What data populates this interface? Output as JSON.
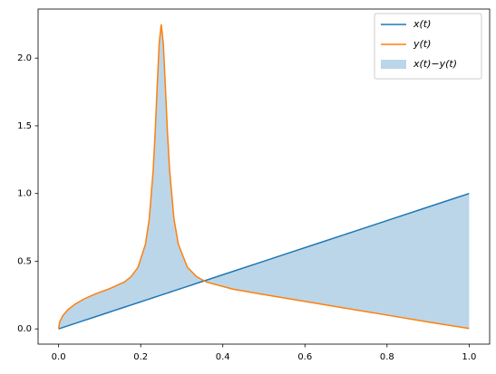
{
  "chart_data": {
    "type": "line",
    "x": [
      0,
      0.0025,
      0.01,
      0.0225,
      0.04,
      0.0625,
      0.09,
      0.1225,
      0.16,
      0.1764,
      0.1936,
      0.2116,
      0.2209,
      0.2304,
      0.2352,
      0.2401,
      0.245,
      0.25,
      0.255,
      0.2601,
      0.2652,
      0.2704,
      0.2809,
      0.2916,
      0.3136,
      0.3364,
      0.36,
      0.4225,
      0.49,
      0.5625,
      0.64,
      0.7225,
      0.81,
      0.9025,
      1.0
    ],
    "series": [
      {
        "name": "x(t)",
        "color": "#1f77b4",
        "values": [
          0,
          0.0025,
          0.01,
          0.0225,
          0.04,
          0.0625,
          0.09,
          0.1225,
          0.16,
          0.1764,
          0.1936,
          0.2116,
          0.2209,
          0.2304,
          0.2352,
          0.2401,
          0.245,
          0.25,
          0.255,
          0.2601,
          0.2652,
          0.2704,
          0.2809,
          0.2916,
          0.3136,
          0.3364,
          0.36,
          0.4225,
          0.49,
          0.5625,
          0.64,
          0.7225,
          0.81,
          0.9025,
          1.0
        ]
      },
      {
        "name": "y(t)",
        "color": "#ff7f0e",
        "values": [
          0.003,
          0.05,
          0.097,
          0.141,
          0.183,
          0.222,
          0.259,
          0.295,
          0.346,
          0.385,
          0.456,
          0.626,
          0.815,
          1.173,
          1.45,
          1.79,
          2.11,
          2.25,
          2.11,
          1.79,
          1.45,
          1.173,
          0.815,
          0.626,
          0.456,
          0.385,
          0.346,
          0.295,
          0.259,
          0.222,
          0.183,
          0.141,
          0.097,
          0.05,
          0.003
        ]
      }
    ],
    "fill": {
      "name": "x(t)−y(t)",
      "color": "#1f77b4",
      "opacity": 0.3
    },
    "xlim": [
      -0.05,
      1.05
    ],
    "ylim": [
      -0.1125,
      2.3625
    ],
    "xticks": [
      {
        "value": 0,
        "label": "0.0"
      },
      0.2,
      0.4,
      0.6,
      0.8,
      {
        "value": 1,
        "label": "1.0"
      }
    ],
    "yticks": [
      {
        "value": 0,
        "label": "0.0"
      },
      0.5,
      {
        "value": 1,
        "label": "1.0"
      },
      1.5,
      {
        "value": 2,
        "label": "2.0"
      }
    ],
    "legend": "upper right"
  }
}
